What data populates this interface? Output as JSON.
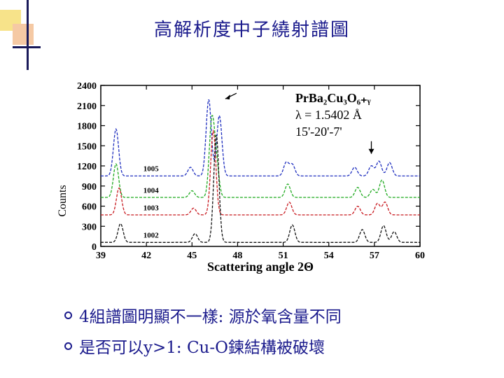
{
  "slide": {
    "title": "高解析度中子繞射譜圖",
    "bullets": [
      "4組譜圖明顯不一樣: 源於氧含量不同",
      "是否可以y>1: Cu-O鍊結構被破壞"
    ]
  },
  "chart_data": {
    "type": "line",
    "title": "",
    "xlabel": "Scattering angle 2Θ",
    "ylabel": "Counts",
    "xlim": [
      39,
      60
    ],
    "ylim": [
      0,
      2400
    ],
    "x_ticks": [
      "39",
      "42",
      "45",
      "48",
      "51",
      "54",
      "57",
      "60"
    ],
    "y_ticks": [
      "0",
      "300",
      "600",
      "900",
      "1200",
      "1500",
      "1800",
      "2100",
      "2400"
    ],
    "annotation": {
      "formula": "PrBa₂Cu₃O₆₊ᵧ",
      "wavelength": "λ = 1.5402 Å",
      "collimation": "15'-20'-7'"
    },
    "series": [
      {
        "name": "1005",
        "color": "#1f2fbf",
        "offset": 1050,
        "peaks": [
          [
            40.0,
            700
          ],
          [
            44.9,
            130
          ],
          [
            46.1,
            1140
          ],
          [
            46.8,
            900
          ],
          [
            51.2,
            200
          ],
          [
            51.6,
            170
          ],
          [
            55.7,
            130
          ],
          [
            56.8,
            150
          ],
          [
            57.3,
            220
          ],
          [
            58.0,
            200
          ]
        ]
      },
      {
        "name": "1004",
        "color": "#1faa1f",
        "offset": 730,
        "peaks": [
          [
            40.0,
            500
          ],
          [
            45.0,
            100
          ],
          [
            46.3,
            1100
          ],
          [
            46.6,
            500
          ],
          [
            51.3,
            200
          ],
          [
            55.9,
            150
          ],
          [
            56.9,
            120
          ],
          [
            57.5,
            260
          ]
        ]
      },
      {
        "name": "1003",
        "color": "#c8191f",
        "offset": 470,
        "peaks": [
          [
            40.2,
            400
          ],
          [
            45.1,
            100
          ],
          [
            46.4,
            1250
          ],
          [
            51.4,
            190
          ],
          [
            55.9,
            130
          ],
          [
            57.2,
            170
          ],
          [
            57.7,
            190
          ]
        ]
      },
      {
        "name": "1002",
        "color": "#111111",
        "offset": 60,
        "peaks": [
          [
            40.3,
            280
          ],
          [
            45.2,
            130
          ],
          [
            46.6,
            1600
          ],
          [
            51.6,
            260
          ],
          [
            56.2,
            190
          ],
          [
            57.6,
            250
          ],
          [
            58.3,
            160
          ]
        ]
      }
    ]
  }
}
